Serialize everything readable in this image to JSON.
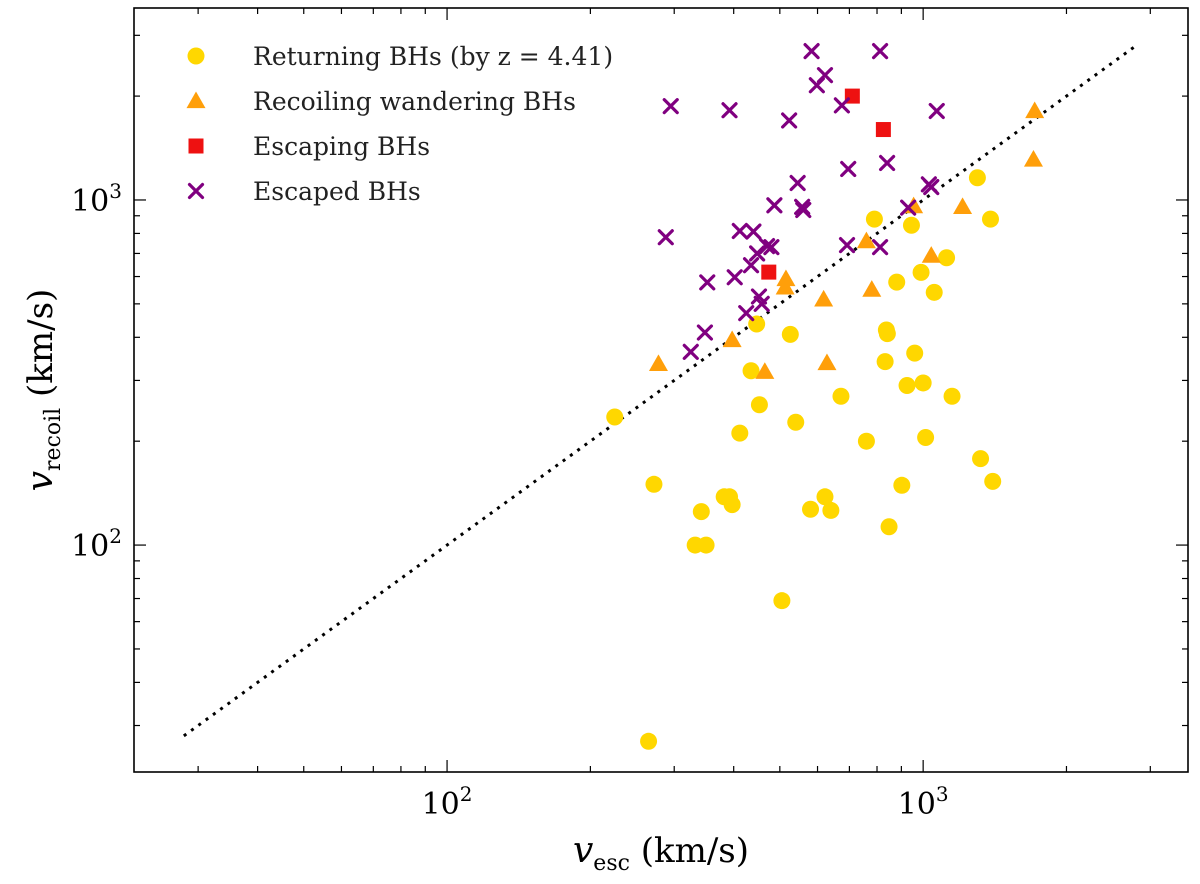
{
  "chart_data": {
    "type": "scatter",
    "xscale": "log",
    "yscale": "log",
    "xlim": [
      22,
      3600
    ],
    "ylim": [
      22,
      3600
    ],
    "xlabel": {
      "var": "v",
      "sub": "esc",
      "unit": "(km/s)"
    },
    "ylabel": {
      "var": "v",
      "sub": "recoil",
      "unit": "(km/s)"
    },
    "x_major_ticks": [
      {
        "value": 100,
        "base": "10",
        "exp": "2"
      },
      {
        "value": 1000,
        "base": "10",
        "exp": "3"
      }
    ],
    "y_major_ticks": [
      {
        "value": 100,
        "base": "10",
        "exp": "2"
      },
      {
        "value": 1000,
        "base": "10",
        "exp": "3"
      }
    ],
    "reference_line": {
      "label": "v_recoil = v_esc",
      "from": 28,
      "to": 2800
    },
    "legend_position": "top-left",
    "series": [
      {
        "name": "Returning BHs (by z = 4.41)",
        "legend_label": "Returning BHs (by z = 4.41)",
        "marker": "circle",
        "color": "#FFD700",
        "points": [
          [
            225,
            235
          ],
          [
            265,
            27
          ],
          [
            272,
            150
          ],
          [
            332,
            100
          ],
          [
            342,
            125
          ],
          [
            350,
            100
          ],
          [
            382,
            138
          ],
          [
            392,
            138
          ],
          [
            397,
            131
          ],
          [
            412,
            211
          ],
          [
            435,
            320
          ],
          [
            447,
            437
          ],
          [
            453,
            255
          ],
          [
            505,
            69
          ],
          [
            526,
            408
          ],
          [
            540,
            227
          ],
          [
            580,
            127
          ],
          [
            622,
            138
          ],
          [
            640,
            126
          ],
          [
            672,
            270
          ],
          [
            760,
            200
          ],
          [
            790,
            880
          ],
          [
            832,
            340
          ],
          [
            837,
            420
          ],
          [
            841,
            410
          ],
          [
            848,
            113
          ],
          [
            880,
            578
          ],
          [
            902,
            149
          ],
          [
            925,
            290
          ],
          [
            945,
            845
          ],
          [
            960,
            360
          ],
          [
            990,
            617
          ],
          [
            1000,
            295
          ],
          [
            1012,
            205
          ],
          [
            1055,
            540
          ],
          [
            1120,
            680
          ],
          [
            1150,
            270
          ],
          [
            1300,
            1160
          ],
          [
            1320,
            178
          ],
          [
            1385,
            880
          ],
          [
            1400,
            153
          ]
        ]
      },
      {
        "name": "Recoiling wandering BHs",
        "legend_label": "Recoiling wandering BHs",
        "marker": "triangle",
        "color": "#FF9F0A",
        "points": [
          [
            278,
            335
          ],
          [
            397,
            393
          ],
          [
            465,
            318
          ],
          [
            513,
            558
          ],
          [
            515,
            590
          ],
          [
            618,
            515
          ],
          [
            628,
            337
          ],
          [
            760,
            760
          ],
          [
            780,
            550
          ],
          [
            955,
            960
          ],
          [
            1040,
            690
          ],
          [
            1210,
            955
          ],
          [
            1705,
            1310
          ],
          [
            1715,
            1810
          ]
        ]
      },
      {
        "name": "Escaping BHs",
        "legend_label": "Escaping BHs",
        "marker": "square",
        "color": "#EE1111",
        "points": [
          [
            474,
            618
          ],
          [
            710,
            2000
          ],
          [
            825,
            1600
          ]
        ]
      },
      {
        "name": "Escaped BHs",
        "legend_label": "Escaped BHs",
        "marker": "x",
        "color": "#800080",
        "points": [
          [
            288,
            780
          ],
          [
            295,
            1870
          ],
          [
            325,
            363
          ],
          [
            348,
            413
          ],
          [
            352,
            577
          ],
          [
            392,
            1820
          ],
          [
            402,
            597
          ],
          [
            412,
            813
          ],
          [
            425,
            470
          ],
          [
            435,
            647
          ],
          [
            440,
            810
          ],
          [
            448,
            700
          ],
          [
            452,
            525
          ],
          [
            458,
            500
          ],
          [
            470,
            735
          ],
          [
            480,
            730
          ],
          [
            487,
            965
          ],
          [
            523,
            1700
          ],
          [
            545,
            1120
          ],
          [
            557,
            955
          ],
          [
            560,
            935
          ],
          [
            583,
            2700
          ],
          [
            598,
            2150
          ],
          [
            622,
            2300
          ],
          [
            675,
            1880
          ],
          [
            692,
            740
          ],
          [
            696,
            1230
          ],
          [
            812,
            2700
          ],
          [
            812,
            730
          ],
          [
            840,
            1280
          ],
          [
            930,
            950
          ],
          [
            1028,
            1110
          ],
          [
            1040,
            1090
          ],
          [
            1068,
            1810
          ]
        ]
      }
    ]
  }
}
